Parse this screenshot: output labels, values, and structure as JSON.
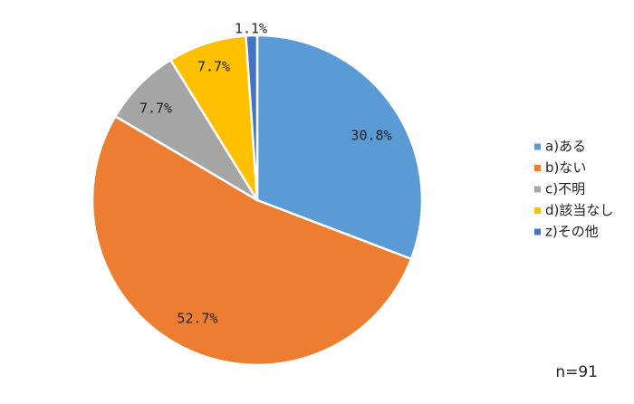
{
  "chart_data": {
    "type": "pie",
    "categories": [
      "a)ある",
      "b)ない",
      "c)不明",
      "d)該当なし",
      "z)その他"
    ],
    "values": [
      30.8,
      52.7,
      7.7,
      7.7,
      1.1
    ],
    "value_labels": [
      "30.8%",
      "52.7%",
      "7.7%",
      "7.7%",
      "1.1%"
    ],
    "colors": [
      "#5B9BD5",
      "#ED7D31",
      "#A5A5A5",
      "#FFC000",
      "#4472C4"
    ],
    "start_angle": "12 o'clock",
    "direction": "clockwise",
    "legend_position": "right",
    "note": "n=91"
  }
}
